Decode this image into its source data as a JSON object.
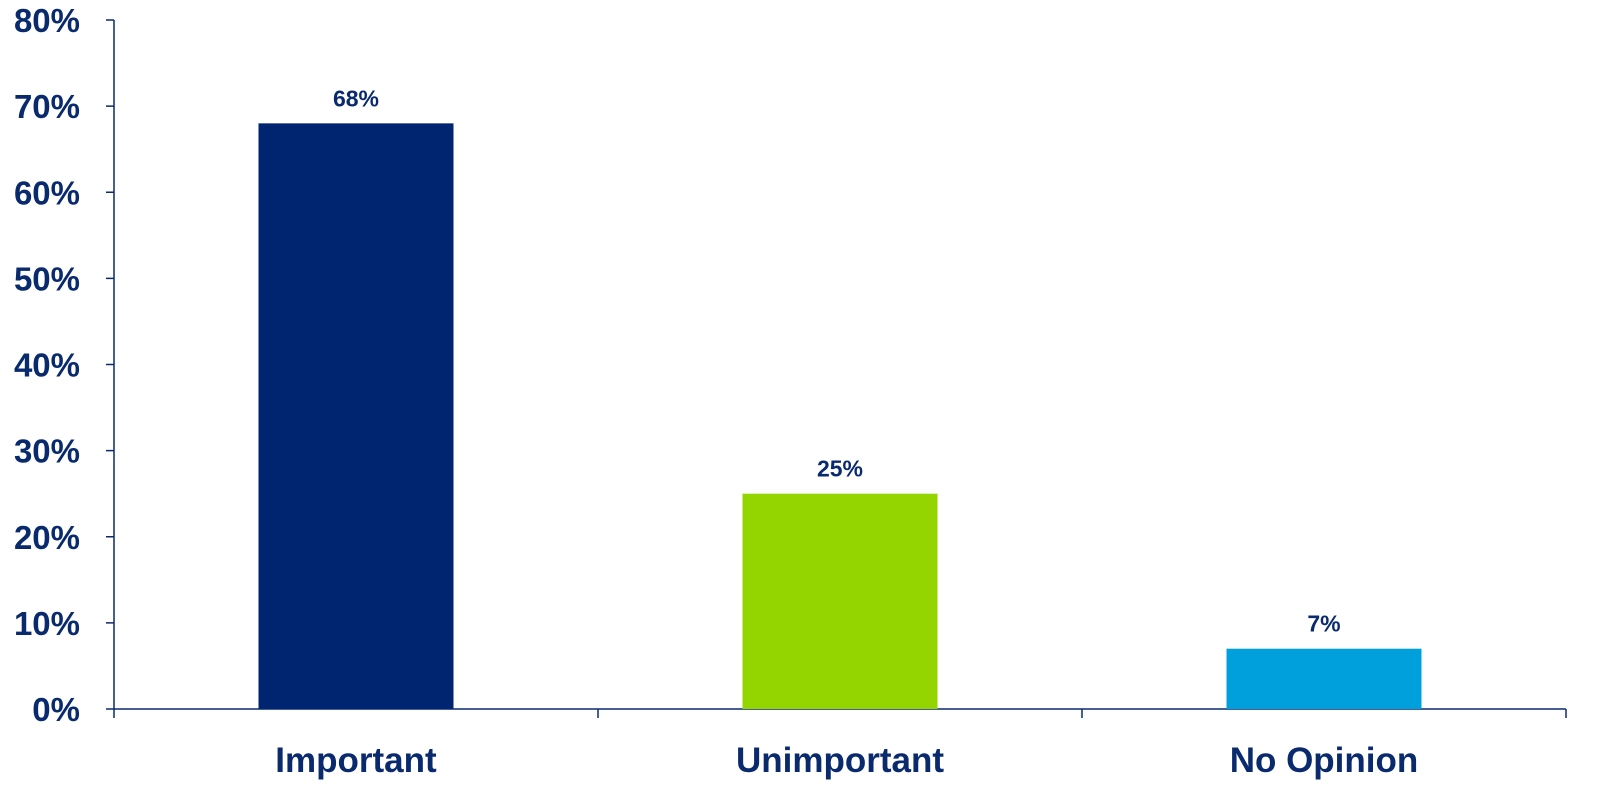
{
  "chart_data": {
    "type": "bar",
    "title": "",
    "xlabel": "",
    "ylabel": "",
    "categories": [
      "Important",
      "Unimportant",
      "No Opinion"
    ],
    "values": [
      68,
      25,
      7
    ],
    "data_labels": [
      "68%",
      "25%",
      "7%"
    ],
    "bar_colors": [
      "#002570",
      "#94d500",
      "#00a0dc"
    ],
    "ylim": [
      0,
      80
    ],
    "y_ticks": [
      0,
      10,
      20,
      30,
      40,
      50,
      60,
      70,
      80
    ],
    "y_tick_labels": [
      "0%",
      "10%",
      "20%",
      "30%",
      "40%",
      "50%",
      "60%",
      "70%",
      "80%"
    ],
    "grid": false,
    "legend": "none",
    "text_color": "#0a2a6e",
    "axis_color": "#0a2a6e"
  }
}
